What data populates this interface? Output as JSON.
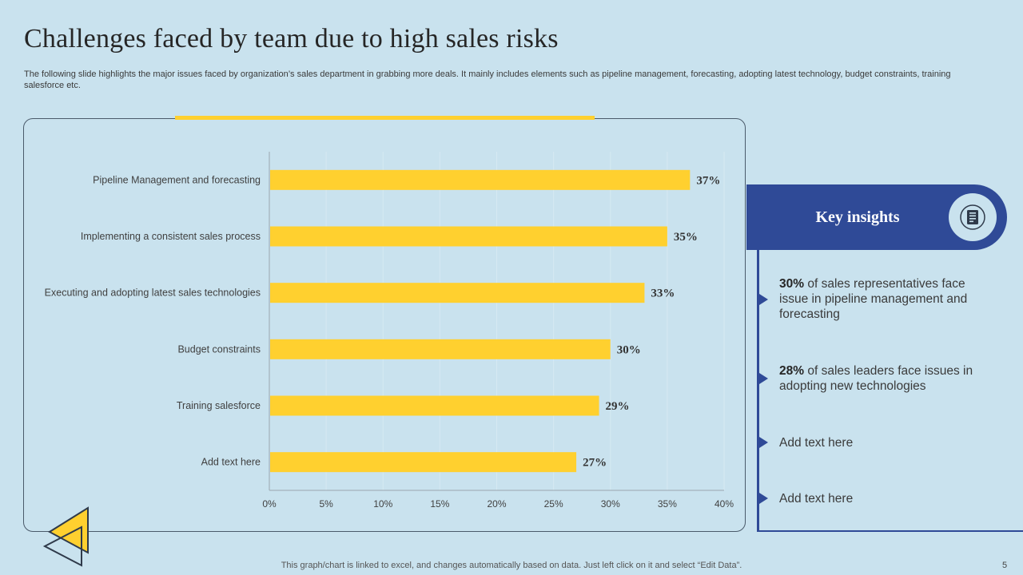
{
  "slide": {
    "title": "Challenges  faced by team due to high sales risks",
    "subtitle": "The following slide highlights the major issues faced by organization’s sales department in grabbing more deals. It mainly includes elements such as pipeline management, forecasting, adopting latest technology, budget constraints, training salesforce etc.",
    "footer_note": "This graph/chart is linked to excel,  and changes automatically based on data. Just left click on it and select “Edit Data”.",
    "page_number": "5"
  },
  "colors": {
    "background": "#c9e2ee",
    "bar": "#ffd02f",
    "accent_blue": "#2f4a97"
  },
  "chart_data": {
    "type": "bar",
    "orientation": "horizontal",
    "categories": [
      "Pipeline Management and forecasting",
      "Implementing a consistent sales process",
      "Executing and adopting latest sales technologies",
      "Budget constraints",
      "Training salesforce",
      "Add text here"
    ],
    "values": [
      37,
      35,
      33,
      30,
      29,
      27
    ],
    "data_labels": [
      "37%",
      "35%",
      "33%",
      "30%",
      "29%",
      "27%"
    ],
    "x_ticks": [
      0,
      5,
      10,
      15,
      20,
      25,
      30,
      35,
      40
    ],
    "x_tick_labels": [
      "0%",
      "5%",
      "10%",
      "15%",
      "20%",
      "25%",
      "30%",
      "35%",
      "40%"
    ],
    "xlim": [
      0,
      40
    ],
    "grid": true,
    "legend": false
  },
  "insights": {
    "title": "Key insights",
    "icon": "document-checklist-icon",
    "items": [
      {
        "bold": "30%",
        "text": " of sales representatives face issue in pipeline management and forecasting"
      },
      {
        "bold": "28%",
        "text": " of sales leaders face issues in adopting new technologies"
      },
      {
        "bold": "",
        "text": "Add text here"
      },
      {
        "bold": "",
        "text": "Add text here"
      }
    ]
  }
}
